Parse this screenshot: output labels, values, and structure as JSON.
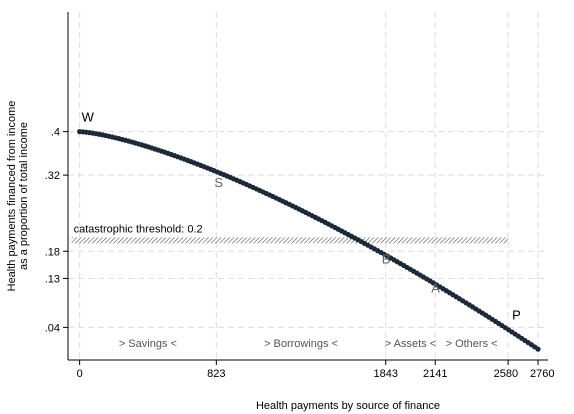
{
  "chart_data": {
    "type": "scatter",
    "xlabel": "Health payments by source of finance",
    "ylabel_lines": [
      "Health payments financed from income",
      "as a proportion of total income"
    ],
    "x_ticks": [
      0,
      823,
      1843,
      2141,
      2580,
      2760
    ],
    "x_tick_labels": [
      "0",
      "823",
      "1843",
      "2141",
      "2580",
      "2760"
    ],
    "y_ticks": [
      0.04,
      0.13,
      0.18,
      0.32,
      0.4
    ],
    "y_tick_labels": [
      ".04",
      ".13",
      ".18",
      ".32",
      ".4"
    ],
    "xlim": [
      -70,
      2820
    ],
    "ylim": [
      -0.02,
      0.62
    ],
    "grid": true,
    "threshold": {
      "value": 0.2,
      "label": "catastrophic threshold: 0.2",
      "x_range": [
        0,
        2580
      ]
    },
    "curve": {
      "x_start": 0,
      "x_end": 2760,
      "y_start": 0.4,
      "y_end": 0.0,
      "description_points": [
        [
          0,
          0.4
        ],
        [
          823,
          0.32
        ],
        [
          1843,
          0.18
        ],
        [
          2141,
          0.13
        ],
        [
          2580,
          0.04
        ],
        [
          2760,
          0.0
        ]
      ]
    },
    "point_labels": [
      {
        "text": "W",
        "x": 0,
        "y": 0.4,
        "color": "#000000"
      },
      {
        "text": "S",
        "x": 823,
        "y": 0.32,
        "color": "#666666"
      },
      {
        "text": "B",
        "x": 1843,
        "y": 0.18,
        "color": "#666666"
      },
      {
        "text": "A",
        "x": 2141,
        "y": 0.13,
        "color": "#666666"
      },
      {
        "text": "P",
        "x": 2580,
        "y": 0.04,
        "color": "#000000"
      }
    ],
    "region_annotations": [
      {
        "text": "> Savings <",
        "x": 411
      },
      {
        "text": "> Borrowings <",
        "x": 1333
      },
      {
        "text": "> Assets <",
        "x": 1992
      },
      {
        "text": "> Others <",
        "x": 2360
      }
    ],
    "colors": {
      "points": "#1a2a3a",
      "grid": "#dcdcdc",
      "threshold": "#555555"
    }
  }
}
